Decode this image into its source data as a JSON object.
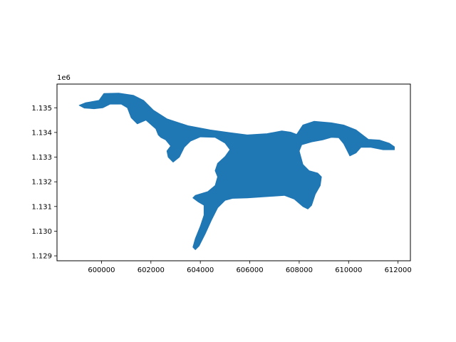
{
  "chart_data": {
    "type": "area",
    "title": "",
    "xlabel": "",
    "ylabel": "",
    "y_offset_text": "1e6",
    "xlim": [
      598200,
      612500
    ],
    "ylim": [
      1128800,
      1135960
    ],
    "y_scale": 1000000,
    "x_ticks": [
      600000,
      602000,
      604000,
      606000,
      608000,
      610000,
      612000
    ],
    "x_tick_labels": [
      "600000",
      "602000",
      "604000",
      "606000",
      "608000",
      "610000",
      "612000"
    ],
    "y_ticks": [
      1129000,
      1130000,
      1131000,
      1132000,
      1133000,
      1134000,
      1135000
    ],
    "y_tick_labels": [
      "1.129",
      "1.130",
      "1.131",
      "1.132",
      "1.133",
      "1.134",
      "1.135"
    ],
    "grid": false,
    "fill_color": "#1f77b4",
    "edge_color": "#1f77b4",
    "series": [
      {
        "polygon": [
          [
            599100,
            1135100
          ],
          [
            599350,
            1135200
          ],
          [
            599900,
            1135300
          ],
          [
            600100,
            1135580
          ],
          [
            600700,
            1135590
          ],
          [
            601300,
            1135500
          ],
          [
            601700,
            1135300
          ],
          [
            602100,
            1134900
          ],
          [
            602650,
            1134550
          ],
          [
            603500,
            1134270
          ],
          [
            604400,
            1134100
          ],
          [
            605200,
            1133990
          ],
          [
            605900,
            1133900
          ],
          [
            606700,
            1133950
          ],
          [
            607300,
            1134060
          ],
          [
            607650,
            1134010
          ],
          [
            607900,
            1133920
          ],
          [
            608150,
            1134300
          ],
          [
            608600,
            1134450
          ],
          [
            609300,
            1134390
          ],
          [
            609800,
            1134300
          ],
          [
            610300,
            1134100
          ],
          [
            610800,
            1133720
          ],
          [
            611250,
            1133690
          ],
          [
            611650,
            1133560
          ],
          [
            611850,
            1133420
          ],
          [
            611850,
            1133300
          ],
          [
            611400,
            1133300
          ],
          [
            610900,
            1133400
          ],
          [
            610500,
            1133400
          ],
          [
            610300,
            1133170
          ],
          [
            610050,
            1133050
          ],
          [
            609950,
            1133250
          ],
          [
            609800,
            1133550
          ],
          [
            609600,
            1133790
          ],
          [
            609300,
            1133800
          ],
          [
            608950,
            1133700
          ],
          [
            608500,
            1133620
          ],
          [
            608100,
            1133500
          ],
          [
            608000,
            1133250
          ],
          [
            608150,
            1132700
          ],
          [
            608400,
            1132450
          ],
          [
            608750,
            1132350
          ],
          [
            608900,
            1132200
          ],
          [
            608850,
            1131850
          ],
          [
            608650,
            1131500
          ],
          [
            608500,
            1131050
          ],
          [
            608350,
            1130900
          ],
          [
            608150,
            1131000
          ],
          [
            607800,
            1131300
          ],
          [
            607400,
            1131450
          ],
          [
            606700,
            1131400
          ],
          [
            605900,
            1131350
          ],
          [
            605300,
            1131330
          ],
          [
            605000,
            1131250
          ],
          [
            604700,
            1130950
          ],
          [
            604450,
            1130450
          ],
          [
            604200,
            1129900
          ],
          [
            603950,
            1129400
          ],
          [
            603800,
            1129250
          ],
          [
            603700,
            1129350
          ],
          [
            603800,
            1129700
          ],
          [
            604000,
            1130200
          ],
          [
            604150,
            1130650
          ],
          [
            604150,
            1131050
          ],
          [
            603900,
            1131200
          ],
          [
            603700,
            1131350
          ],
          [
            603800,
            1131450
          ],
          [
            604300,
            1131600
          ],
          [
            604600,
            1131850
          ],
          [
            604700,
            1132200
          ],
          [
            604600,
            1132450
          ],
          [
            604700,
            1132750
          ],
          [
            605000,
            1133020
          ],
          [
            605200,
            1133300
          ],
          [
            605000,
            1133570
          ],
          [
            604600,
            1133800
          ],
          [
            604000,
            1133820
          ],
          [
            603600,
            1133650
          ],
          [
            603350,
            1133400
          ],
          [
            603150,
            1133000
          ],
          [
            602900,
            1132800
          ],
          [
            602700,
            1133000
          ],
          [
            602650,
            1133250
          ],
          [
            602800,
            1133450
          ],
          [
            602600,
            1133700
          ],
          [
            602400,
            1133800
          ],
          [
            602300,
            1133900
          ],
          [
            602200,
            1134150
          ],
          [
            601800,
            1134500
          ],
          [
            601450,
            1134350
          ],
          [
            601200,
            1134600
          ],
          [
            601050,
            1135000
          ],
          [
            600800,
            1135150
          ],
          [
            600350,
            1135150
          ],
          [
            600050,
            1135000
          ],
          [
            599700,
            1134960
          ],
          [
            599300,
            1134990
          ],
          [
            599100,
            1135100
          ]
        ]
      }
    ]
  }
}
